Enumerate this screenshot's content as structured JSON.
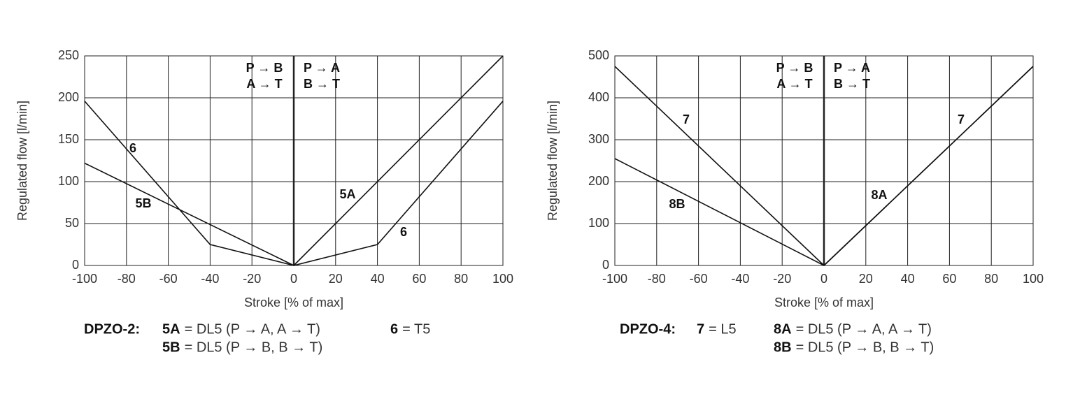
{
  "chart_data": [
    {
      "type": "line",
      "x_label": "Stroke [% of max]",
      "y_label": "Regulated flow [l/min]",
      "caption": "DPZO-2:",
      "directions": [
        "P → B",
        "A → T",
        "P → A",
        "B → T"
      ],
      "xlim": [
        -100,
        100
      ],
      "xticks": [
        -100,
        -80,
        -60,
        -40,
        -20,
        0,
        20,
        40,
        60,
        80,
        100
      ],
      "ylim": [
        0,
        250
      ],
      "yticks": [
        0,
        50,
        100,
        150,
        200,
        250
      ],
      "grid": true,
      "series": [
        {
          "name": "5A",
          "label": "= DL5 (P → A, A → T)",
          "color": "#111",
          "x": [
            0,
            100
          ],
          "values": [
            0,
            250
          ]
        },
        {
          "name": "5B",
          "label": "= DL5 (P → B, B → T)",
          "color": "#111",
          "x": [
            -100,
            0
          ],
          "values": [
            122,
            0
          ]
        },
        {
          "name": "6",
          "label": "= T5",
          "color": "#111",
          "x": [
            -100,
            -40,
            0,
            40,
            100
          ],
          "values": [
            196,
            25,
            0,
            25,
            196
          ]
        }
      ]
    },
    {
      "type": "line",
      "x_label": "Stroke [% of max]",
      "y_label": "Regulated flow [l/min]",
      "caption": "DPZO-4:",
      "directions": [
        "P → B",
        "A → T",
        "P → A",
        "B → T"
      ],
      "xlim": [
        -100,
        100
      ],
      "xticks": [
        -100,
        -80,
        -60,
        -40,
        -20,
        0,
        20,
        40,
        60,
        80,
        100
      ],
      "ylim": [
        0,
        500
      ],
      "yticks": [
        0,
        100,
        200,
        300,
        400,
        500
      ],
      "grid": true,
      "series": [
        {
          "name": "7",
          "label": "= L5",
          "color": "#111",
          "x": [
            -100,
            0,
            100
          ],
          "values": [
            475,
            0,
            475
          ]
        },
        {
          "name": "8A",
          "label": "= DL5 (P → A, A → T)",
          "color": "#111",
          "x": [
            0,
            100
          ],
          "values": [
            0,
            475
          ]
        },
        {
          "name": "8B",
          "label": "= DL5 (P → B, B → T)",
          "color": "#111",
          "x": [
            -100,
            0
          ],
          "values": [
            255,
            0
          ]
        }
      ]
    }
  ]
}
